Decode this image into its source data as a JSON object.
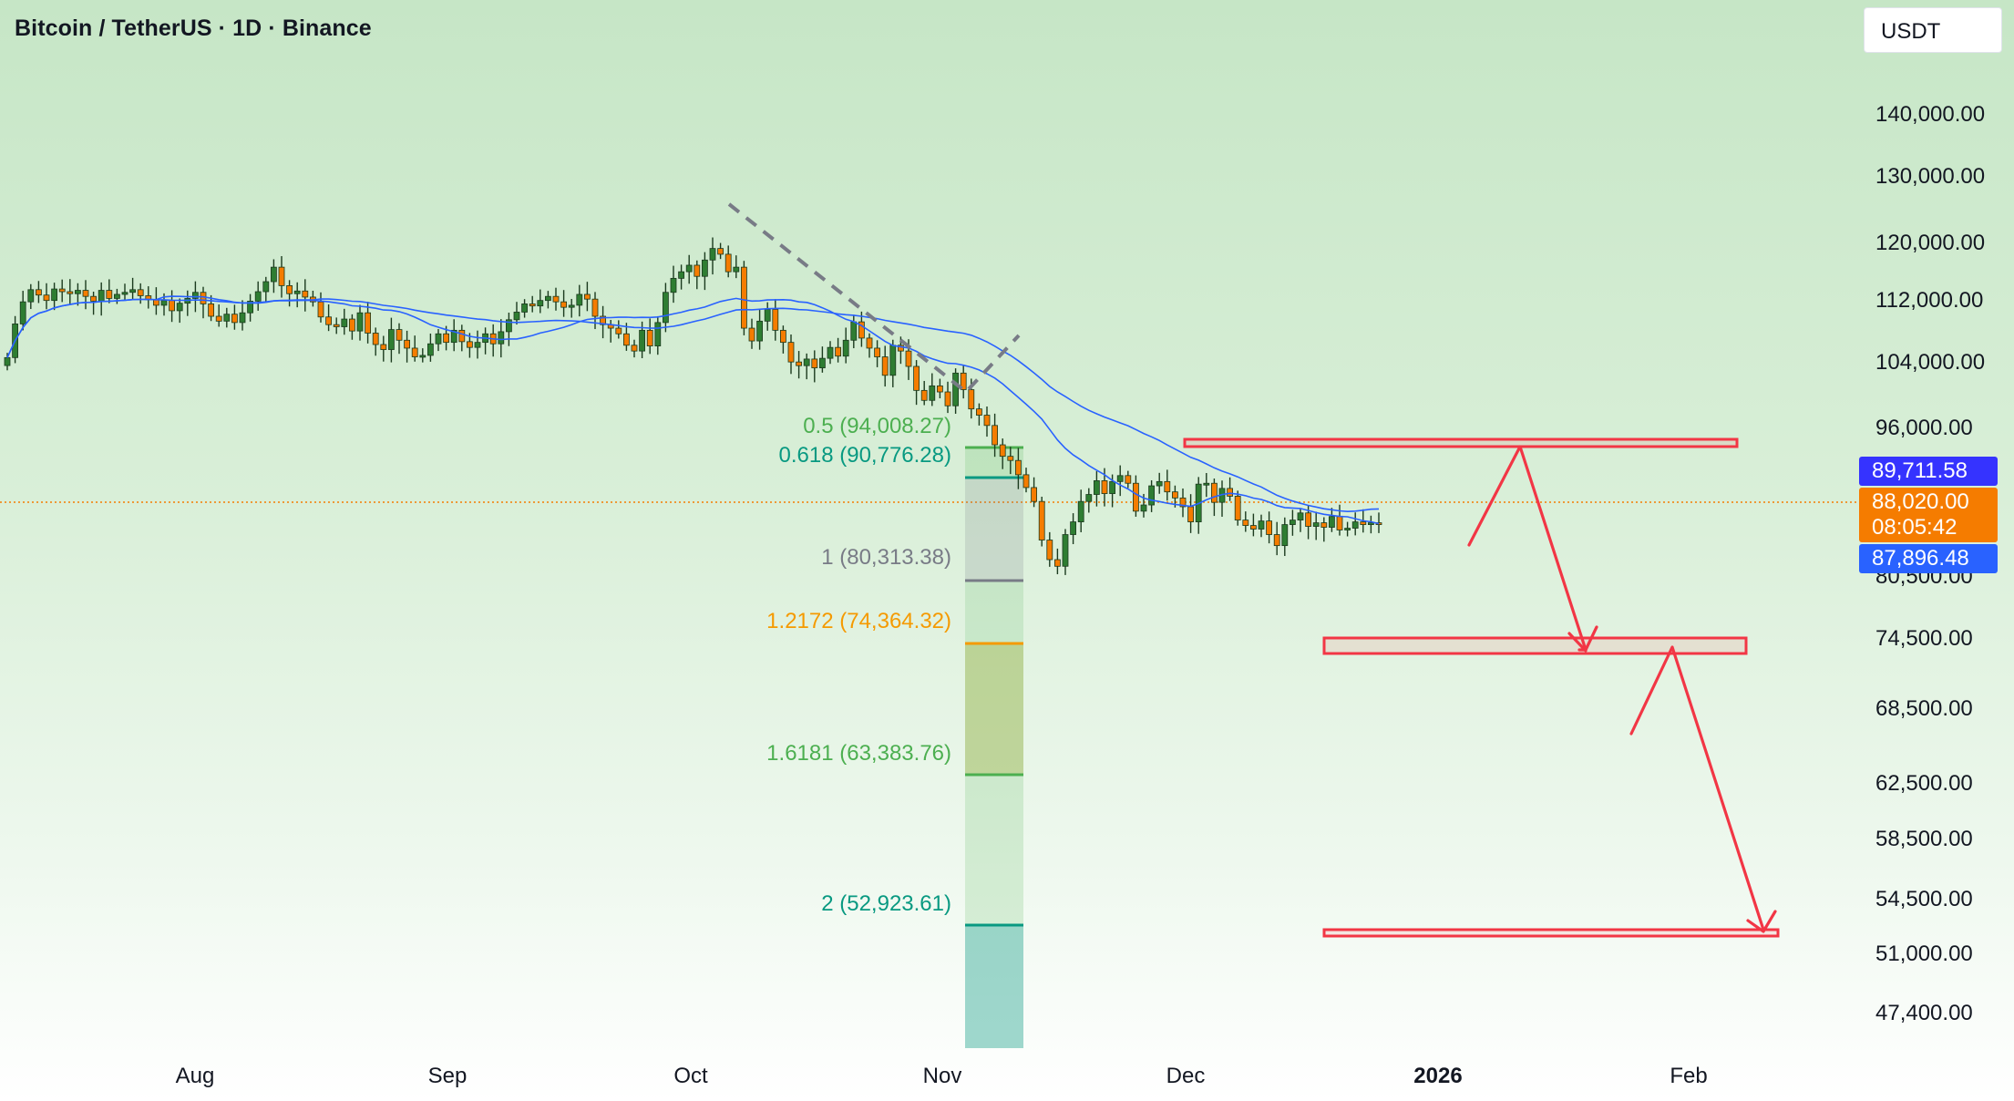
{
  "header": {
    "title": "Bitcoin / TetherUS · 1D · Binance",
    "currency": "USDT"
  },
  "colors": {
    "up": "#26a69a",
    "up_candle": "#2e7d32",
    "down_candle": "#f57c00",
    "ma_line": "#2962ff",
    "target_box": "#f23645",
    "current_price": "#f57c00",
    "tag_ma_top": "#3533ff",
    "tag_ma_bottom": "#2962ff"
  },
  "price_tags": {
    "ma_top": "89,711.58",
    "current": "88,020.00",
    "countdown": "08:05:42",
    "ma_bottom": "87,896.48"
  },
  "fib_levels": [
    {
      "label": "0.5 (94,008.27)",
      "color": "#4caf50"
    },
    {
      "label": "0.618 (90,776.28)",
      "color": "#089981"
    },
    {
      "label": "1 (80,313.38)",
      "color": "#787b86"
    },
    {
      "label": "1.2172 (74,364.32)",
      "color": "#f59a00"
    },
    {
      "label": "1.6181 (63,383.76)",
      "color": "#4caf50"
    },
    {
      "label": "2 (52,923.61)",
      "color": "#089981"
    }
  ],
  "chart_data": {
    "type": "candlestick",
    "title": "Bitcoin / TetherUS · 1D · Binance",
    "y_scale": "log",
    "y_ticks": [
      "140,000.00",
      "130,000.00",
      "120,000.00",
      "112,000.00",
      "104,000.00",
      "96,000.00",
      "80,500.00",
      "74,500.00",
      "68,500.00",
      "62,500.00",
      "58,500.00",
      "54,500.00",
      "51,000.00",
      "47,400.00"
    ],
    "x_ticks": [
      "Aug",
      "Sep",
      "Oct",
      "Nov",
      "Dec",
      "2026",
      "Feb"
    ],
    "current_price": 88020,
    "moving_average_last": 89711.58,
    "moving_average_alt": 87896.48,
    "series_close": [
      108500,
      113200,
      116400,
      118200,
      117400,
      116600,
      118300,
      117900,
      117600,
      118100,
      117200,
      116500,
      118100,
      116900,
      117500,
      117800,
      118200,
      117300,
      116700,
      115900,
      116600,
      115100,
      116200,
      116900,
      117800,
      116100,
      114300,
      113600,
      114600,
      113400,
      114800,
      116500,
      117900,
      119400,
      121600,
      118800,
      117600,
      118000,
      117100,
      116400,
      114200,
      113100,
      112800,
      113900,
      112200,
      114800,
      111900,
      110300,
      109600,
      112400,
      110900,
      109800,
      108600,
      108800,
      110400,
      111800,
      110600,
      112300,
      110700,
      109900,
      110600,
      111800,
      110400,
      112100,
      113800,
      114900,
      116100,
      115800,
      116600,
      117200,
      116400,
      115600,
      115900,
      117500,
      116800,
      114300,
      113100,
      112600,
      111800,
      110200,
      109400,
      112300,
      110100,
      113400,
      117800,
      119900,
      120900,
      121900,
      120200,
      122700,
      124500,
      123600,
      120900,
      121600,
      112600,
      110800,
      113600,
      115300,
      112300,
      110600,
      107900,
      107400,
      108300,
      107100,
      108400,
      109900,
      108700,
      110900,
      113500,
      111200,
      109800,
      108600,
      106100,
      110200,
      109400,
      107300,
      104100,
      102800,
      104700,
      103900,
      102100,
      106400,
      104200,
      101700,
      100900,
      99600,
      97200,
      95800,
      95300,
      93600,
      92100,
      90500,
      86200,
      84100,
      83400,
      86800,
      88200,
      90500,
      91300,
      92900,
      91400,
      92800,
      93500,
      92600,
      89400,
      90100,
      92300,
      92800,
      91600,
      90900,
      89900,
      88200,
      92500,
      92600,
      90400,
      92000,
      91100,
      88400,
      87800,
      87400,
      88300,
      86800,
      85600,
      87900,
      88400,
      89200,
      87700,
      88100,
      87600,
      88800,
      87300,
      87500,
      88200,
      87900,
      88100,
      88020
    ],
    "fib_retracement": [
      {
        "ratio": 0.5,
        "price": 94008.27
      },
      {
        "ratio": 0.618,
        "price": 90776.28
      },
      {
        "ratio": 1,
        "price": 80313.38
      },
      {
        "ratio": 1.2172,
        "price": 74364.32
      },
      {
        "ratio": 1.6181,
        "price": 63383.76
      },
      {
        "ratio": 2,
        "price": 52923.61
      }
    ],
    "target_zones": [
      {
        "low": 94000,
        "high": 95000
      },
      {
        "low": 74400,
        "high": 75500
      },
      {
        "low": 52700,
        "high": 53200
      }
    ],
    "projection_path": [
      {
        "date": "2026-01-02",
        "price": 85000
      },
      {
        "date": "2026-01-08",
        "price": 94800
      },
      {
        "date": "2026-01-20",
        "price": 74500
      },
      {
        "date": "2026-01-23",
        "price": 76200
      },
      {
        "date": "2026-01-31",
        "price": 68000
      },
      {
        "date": "2026-02-02",
        "price": 75000
      },
      {
        "date": "2026-02-14",
        "price": 53100
      }
    ]
  }
}
